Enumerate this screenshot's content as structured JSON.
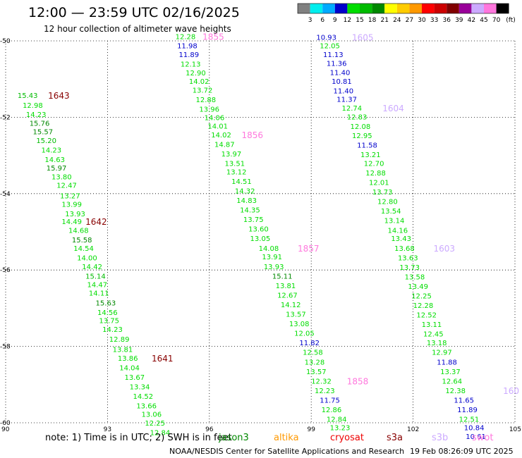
{
  "chart_data": {
    "type": "scatter",
    "title": "12:00 — 23:59 UTC 02/16/2025",
    "subtitle": "12 hour collection of altimeter wave heights",
    "xlim": [
      90,
      105
    ],
    "ylim": [
      -60,
      -50
    ],
    "x_ticks": [
      90,
      93,
      96,
      99,
      102,
      105
    ],
    "y_ticks": [
      -50,
      -52,
      -54,
      -56,
      -58,
      -60
    ],
    "x_tick_labels": [
      "90",
      "93",
      "96",
      "99",
      "102",
      "105"
    ],
    "y_tick_labels": [
      "-50",
      "-52",
      "-54",
      "-56",
      "-58",
      "-60"
    ],
    "grid": true,
    "colorbar": {
      "ticks": [
        "3",
        "6",
        "9",
        "12",
        "15",
        "18",
        "21",
        "24",
        "27",
        "30",
        "33",
        "36",
        "39",
        "42",
        "45",
        "70"
      ],
      "unit": "(ft)",
      "colors": [
        "#808080",
        "#00eeee",
        "#00aaff",
        "#0000cc",
        "#00dd00",
        "#00bb00",
        "#008800",
        "#ffff00",
        "#ffcc00",
        "#ff9900",
        "#ff0000",
        "#cc0000",
        "#800000",
        "#990099",
        "#ccaaff",
        "#ff77dd",
        "#000000"
      ]
    },
    "series": [
      {
        "name": "jason3",
        "color": "#008800",
        "points": [
          {
            "x": 90.35,
            "y": -51.42,
            "v": "15.43",
            "c": "#00bb00"
          },
          {
            "x": 90.5,
            "y": -51.68,
            "v": "12.98",
            "c": "#00dd00"
          },
          {
            "x": 90.6,
            "y": -51.92,
            "v": "14.23",
            "c": "#00dd00"
          },
          {
            "x": 90.7,
            "y": -52.15,
            "v": "15.76",
            "c": "#008800"
          },
          {
            "x": 90.8,
            "y": -52.37,
            "v": "15.57",
            "c": "#008800"
          },
          {
            "x": 90.9,
            "y": -52.6,
            "v": "15.20",
            "c": "#00bb00"
          },
          {
            "x": 91.05,
            "y": -52.85,
            "v": "14.23",
            "c": "#00dd00"
          },
          {
            "x": 91.15,
            "y": -53.1,
            "v": "14.63",
            "c": "#00dd00"
          },
          {
            "x": 91.2,
            "y": -53.32,
            "v": "15.97",
            "c": "#008800"
          },
          {
            "x": 91.35,
            "y": -53.55,
            "v": "13.80",
            "c": "#00dd00"
          },
          {
            "x": 91.5,
            "y": -53.77,
            "v": "12.47",
            "c": "#00dd00"
          },
          {
            "x": 91.6,
            "y": -54.05,
            "v": "13.27",
            "c": "#00dd00"
          },
          {
            "x": 91.65,
            "y": -54.27,
            "v": "13.99",
            "c": "#00dd00"
          },
          {
            "x": 91.75,
            "y": -54.52,
            "v": "13.93",
            "c": "#00dd00"
          },
          {
            "x": 91.65,
            "y": -54.72,
            "v": "14.49",
            "c": "#00dd00"
          },
          {
            "x": 91.85,
            "y": -54.95,
            "v": "14.68",
            "c": "#00dd00"
          },
          {
            "x": 91.95,
            "y": -55.2,
            "v": "15.58",
            "c": "#008800"
          },
          {
            "x": 92.0,
            "y": -55.42,
            "v": "14.54",
            "c": "#00dd00"
          },
          {
            "x": 92.1,
            "y": -55.67,
            "v": "14.00",
            "c": "#00dd00"
          },
          {
            "x": 92.25,
            "y": -55.9,
            "v": "14.42",
            "c": "#00dd00"
          },
          {
            "x": 92.35,
            "y": -56.15,
            "v": "15.14",
            "c": "#00bb00"
          },
          {
            "x": 92.4,
            "y": -56.37,
            "v": "14.47",
            "c": "#00dd00"
          },
          {
            "x": 92.45,
            "y": -56.6,
            "v": "14.11",
            "c": "#00dd00"
          },
          {
            "x": 92.65,
            "y": -56.85,
            "v": "15.63",
            "c": "#008800"
          },
          {
            "x": 92.7,
            "y": -57.1,
            "v": "14.56",
            "c": "#00dd00"
          },
          {
            "x": 92.75,
            "y": -57.32,
            "v": "13.75",
            "c": "#00dd00"
          },
          {
            "x": 92.85,
            "y": -57.55,
            "v": "14.23",
            "c": "#00dd00"
          },
          {
            "x": 93.05,
            "y": -57.8,
            "v": "12.89",
            "c": "#00dd00"
          },
          {
            "x": 93.15,
            "y": -58.07,
            "v": "13.81",
            "c": "#00dd00"
          },
          {
            "x": 93.3,
            "y": -58.3,
            "v": "13.86",
            "c": "#00dd00"
          },
          {
            "x": 93.35,
            "y": -58.55,
            "v": "14.04",
            "c": "#00dd00"
          },
          {
            "x": 93.5,
            "y": -58.8,
            "v": "13.67",
            "c": "#00dd00"
          },
          {
            "x": 93.65,
            "y": -59.05,
            "v": "13.34",
            "c": "#00dd00"
          },
          {
            "x": 93.75,
            "y": -59.3,
            "v": "14.52",
            "c": "#00dd00"
          },
          {
            "x": 93.85,
            "y": -59.55,
            "v": "13.66",
            "c": "#00dd00"
          },
          {
            "x": 94.0,
            "y": -59.77,
            "v": "13.06",
            "c": "#00dd00"
          },
          {
            "x": 94.1,
            "y": -60.0,
            "v": "12.25",
            "c": "#00dd00"
          },
          {
            "x": 94.25,
            "y": -60.25,
            "v": "12.84",
            "c": "#00dd00"
          },
          {
            "x": 95.0,
            "y": -49.88,
            "v": "12.28",
            "c": "#00dd00"
          },
          {
            "x": 95.05,
            "y": -50.12,
            "v": "11.98",
            "c": "#0000cc"
          },
          {
            "x": 95.1,
            "y": -50.35,
            "v": "11.89",
            "c": "#0000cc"
          },
          {
            "x": 95.15,
            "y": -50.6,
            "v": "12.13",
            "c": "#00dd00"
          },
          {
            "x": 95.3,
            "y": -50.83,
            "v": "12.90",
            "c": "#00dd00"
          },
          {
            "x": 95.4,
            "y": -51.05,
            "v": "14.02",
            "c": "#00dd00"
          },
          {
            "x": 95.5,
            "y": -51.28,
            "v": "13.72",
            "c": "#00dd00"
          },
          {
            "x": 95.6,
            "y": -51.53,
            "v": "12.88",
            "c": "#00dd00"
          },
          {
            "x": 95.7,
            "y": -51.78,
            "v": "13.96",
            "c": "#00dd00"
          },
          {
            "x": 95.85,
            "y": -52.0,
            "v": "14.06",
            "c": "#00dd00"
          },
          {
            "x": 95.95,
            "y": -52.22,
            "v": "14.01",
            "c": "#00dd00"
          },
          {
            "x": 96.05,
            "y": -52.45,
            "v": "14.02",
            "c": "#00dd00"
          },
          {
            "x": 96.15,
            "y": -52.7,
            "v": "14.87",
            "c": "#00dd00"
          },
          {
            "x": 96.35,
            "y": -52.95,
            "v": "13.97",
            "c": "#00dd00"
          },
          {
            "x": 96.45,
            "y": -53.2,
            "v": "13.51",
            "c": "#00dd00"
          },
          {
            "x": 96.5,
            "y": -53.42,
            "v": "13.12",
            "c": "#00dd00"
          },
          {
            "x": 96.65,
            "y": -53.67,
            "v": "14.51",
            "c": "#00dd00"
          },
          {
            "x": 96.75,
            "y": -53.92,
            "v": "14.32",
            "c": "#00dd00"
          },
          {
            "x": 96.8,
            "y": -54.17,
            "v": "14.83",
            "c": "#00dd00"
          },
          {
            "x": 96.9,
            "y": -54.42,
            "v": "14.35",
            "c": "#00dd00"
          },
          {
            "x": 97.0,
            "y": -54.67,
            "v": "13.75",
            "c": "#00dd00"
          },
          {
            "x": 97.15,
            "y": -54.92,
            "v": "13.60",
            "c": "#00dd00"
          },
          {
            "x": 97.2,
            "y": -55.17,
            "v": "13.05",
            "c": "#00dd00"
          },
          {
            "x": 97.45,
            "y": -55.42,
            "v": "14.08",
            "c": "#00dd00"
          },
          {
            "x": 97.55,
            "y": -55.65,
            "v": "13.91",
            "c": "#00dd00"
          },
          {
            "x": 97.6,
            "y": -55.9,
            "v": "13.93",
            "c": "#00dd00"
          },
          {
            "x": 97.85,
            "y": -56.15,
            "v": "15.11",
            "c": "#008800"
          },
          {
            "x": 97.95,
            "y": -56.4,
            "v": "13.81",
            "c": "#00dd00"
          },
          {
            "x": 98.0,
            "y": -56.65,
            "v": "12.67",
            "c": "#00dd00"
          },
          {
            "x": 98.1,
            "y": -56.9,
            "v": "14.12",
            "c": "#00dd00"
          },
          {
            "x": 98.25,
            "y": -57.15,
            "v": "13.57",
            "c": "#00dd00"
          },
          {
            "x": 98.35,
            "y": -57.4,
            "v": "13.08",
            "c": "#00dd00"
          },
          {
            "x": 98.5,
            "y": -57.65,
            "v": "12.05",
            "c": "#00dd00"
          },
          {
            "x": 98.65,
            "y": -57.9,
            "v": "11.82",
            "c": "#0000cc"
          },
          {
            "x": 98.75,
            "y": -58.15,
            "v": "12.58",
            "c": "#00dd00"
          },
          {
            "x": 98.8,
            "y": -58.4,
            "v": "13.28",
            "c": "#00dd00"
          },
          {
            "x": 98.85,
            "y": -58.65,
            "v": "13.57",
            "c": "#00dd00"
          },
          {
            "x": 99.0,
            "y": -58.9,
            "v": "12.32",
            "c": "#00dd00"
          },
          {
            "x": 99.1,
            "y": -59.15,
            "v": "12.23",
            "c": "#00dd00"
          },
          {
            "x": 99.25,
            "y": -59.4,
            "v": "11.75",
            "c": "#0000cc"
          },
          {
            "x": 99.3,
            "y": -59.65,
            "v": "12.86",
            "c": "#00dd00"
          },
          {
            "x": 99.45,
            "y": -59.9,
            "v": "12.84",
            "c": "#00dd00"
          },
          {
            "x": 99.55,
            "y": -60.12,
            "v": "13.23",
            "c": "#00dd00"
          },
          {
            "x": 99.15,
            "y": -49.9,
            "v": "10.93",
            "c": "#0000cc"
          },
          {
            "x": 99.25,
            "y": -50.12,
            "v": "12.05",
            "c": "#00dd00"
          },
          {
            "x": 99.35,
            "y": -50.35,
            "v": "11.13",
            "c": "#0000cc"
          },
          {
            "x": 99.45,
            "y": -50.58,
            "v": "11.36",
            "c": "#0000cc"
          },
          {
            "x": 99.55,
            "y": -50.82,
            "v": "11.40",
            "c": "#0000cc"
          },
          {
            "x": 99.6,
            "y": -51.05,
            "v": "10.81",
            "c": "#0000cc"
          },
          {
            "x": 99.65,
            "y": -51.3,
            "v": "11.40",
            "c": "#0000cc"
          },
          {
            "x": 99.75,
            "y": -51.52,
            "v": "11.37",
            "c": "#0000cc"
          },
          {
            "x": 99.9,
            "y": -51.75,
            "v": "12.74",
            "c": "#00dd00"
          },
          {
            "x": 100.05,
            "y": -51.98,
            "v": "12.83",
            "c": "#00dd00"
          },
          {
            "x": 100.15,
            "y": -52.23,
            "v": "12.08",
            "c": "#00dd00"
          },
          {
            "x": 100.2,
            "y": -52.47,
            "v": "12.95",
            "c": "#00dd00"
          },
          {
            "x": 100.35,
            "y": -52.72,
            "v": "11.58",
            "c": "#0000cc"
          },
          {
            "x": 100.45,
            "y": -52.97,
            "v": "13.21",
            "c": "#00dd00"
          },
          {
            "x": 100.55,
            "y": -53.2,
            "v": "12.70",
            "c": "#00dd00"
          },
          {
            "x": 100.6,
            "y": -53.45,
            "v": "12.88",
            "c": "#00dd00"
          },
          {
            "x": 100.7,
            "y": -53.7,
            "v": "12.01",
            "c": "#00dd00"
          },
          {
            "x": 100.8,
            "y": -53.95,
            "v": "13.73",
            "c": "#00dd00"
          },
          {
            "x": 100.95,
            "y": -54.2,
            "v": "12.80",
            "c": "#00dd00"
          },
          {
            "x": 101.05,
            "y": -54.45,
            "v": "13.54",
            "c": "#00dd00"
          },
          {
            "x": 101.15,
            "y": -54.7,
            "v": "13.14",
            "c": "#00dd00"
          },
          {
            "x": 101.25,
            "y": -54.95,
            "v": "14.16",
            "c": "#00dd00"
          },
          {
            "x": 101.35,
            "y": -55.17,
            "v": "13.43",
            "c": "#00dd00"
          },
          {
            "x": 101.45,
            "y": -55.42,
            "v": "13.68",
            "c": "#00dd00"
          },
          {
            "x": 101.55,
            "y": -55.67,
            "v": "13.63",
            "c": "#00dd00"
          },
          {
            "x": 101.6,
            "y": -55.92,
            "v": "13.73",
            "c": "#00dd00"
          },
          {
            "x": 101.75,
            "y": -56.17,
            "v": "13.58",
            "c": "#00dd00"
          },
          {
            "x": 101.85,
            "y": -56.42,
            "v": "13.49",
            "c": "#00dd00"
          },
          {
            "x": 101.95,
            "y": -56.67,
            "v": "12.25",
            "c": "#00dd00"
          },
          {
            "x": 102.0,
            "y": -56.92,
            "v": "12.28",
            "c": "#00dd00"
          },
          {
            "x": 102.1,
            "y": -57.17,
            "v": "12.52",
            "c": "#00dd00"
          },
          {
            "x": 102.25,
            "y": -57.42,
            "v": "13.11",
            "c": "#00dd00"
          },
          {
            "x": 102.3,
            "y": -57.67,
            "v": "12.45",
            "c": "#00dd00"
          },
          {
            "x": 102.4,
            "y": -57.9,
            "v": "13.18",
            "c": "#00dd00"
          },
          {
            "x": 102.55,
            "y": -58.15,
            "v": "12.97",
            "c": "#00dd00"
          },
          {
            "x": 102.7,
            "y": -58.4,
            "v": "11.88",
            "c": "#0000cc"
          },
          {
            "x": 102.8,
            "y": -58.65,
            "v": "13.37",
            "c": "#00dd00"
          },
          {
            "x": 102.85,
            "y": -58.9,
            "v": "12.64",
            "c": "#00dd00"
          },
          {
            "x": 102.95,
            "y": -59.15,
            "v": "12.38",
            "c": "#00dd00"
          },
          {
            "x": 103.2,
            "y": -59.4,
            "v": "11.65",
            "c": "#0000cc"
          },
          {
            "x": 103.3,
            "y": -59.65,
            "v": "11.89",
            "c": "#0000cc"
          },
          {
            "x": 103.35,
            "y": -59.9,
            "v": "12.51",
            "c": "#00dd00"
          },
          {
            "x": 103.5,
            "y": -60.12,
            "v": "10.84",
            "c": "#0000cc"
          },
          {
            "x": 103.55,
            "y": -60.35,
            "v": "10.61",
            "c": "#0000cc"
          }
        ]
      }
    ],
    "time_labels": [
      {
        "x": 91.25,
        "y": -51.42,
        "text": "1643",
        "c": "#880000"
      },
      {
        "x": 92.35,
        "y": -54.72,
        "text": "1642",
        "c": "#880000"
      },
      {
        "x": 94.3,
        "y": -58.3,
        "text": "1641",
        "c": "#880000"
      },
      {
        "x": 95.8,
        "y": -49.88,
        "text": "1855",
        "c": "#ff77dd"
      },
      {
        "x": 96.95,
        "y": -52.45,
        "text": "1856",
        "c": "#ff77dd"
      },
      {
        "x": 98.6,
        "y": -55.42,
        "text": "1857",
        "c": "#ff77dd"
      },
      {
        "x": 100.05,
        "y": -58.9,
        "text": "1858",
        "c": "#ff77dd"
      },
      {
        "x": 100.2,
        "y": -49.9,
        "text": "1605",
        "c": "#ccaaff"
      },
      {
        "x": 101.1,
        "y": -51.75,
        "text": "1604",
        "c": "#ccaaff"
      },
      {
        "x": 102.6,
        "y": -55.42,
        "text": "1603",
        "c": "#ccaaff"
      },
      {
        "x": 104.65,
        "y": -59.15,
        "text": "160",
        "c": "#ccaaff"
      }
    ]
  },
  "note_text": "note:  1) Time is in UTC; 2) SWH is in feet",
  "satellites": [
    {
      "label": "jason3",
      "color": "#008800"
    },
    {
      "label": "altika",
      "color": "#ff9900"
    },
    {
      "label": "cryosat",
      "color": "#ee0000"
    },
    {
      "label": "s3a",
      "color": "#880000"
    },
    {
      "label": "s3b",
      "color": "#ccaaff"
    },
    {
      "label": "swot",
      "color": "#ff77dd"
    }
  ],
  "credit_text": "NOAA/NESDIS Center for Satellite Applications and Research",
  "timestamp_text": "19 Feb 08:26:09 UTC 2025"
}
